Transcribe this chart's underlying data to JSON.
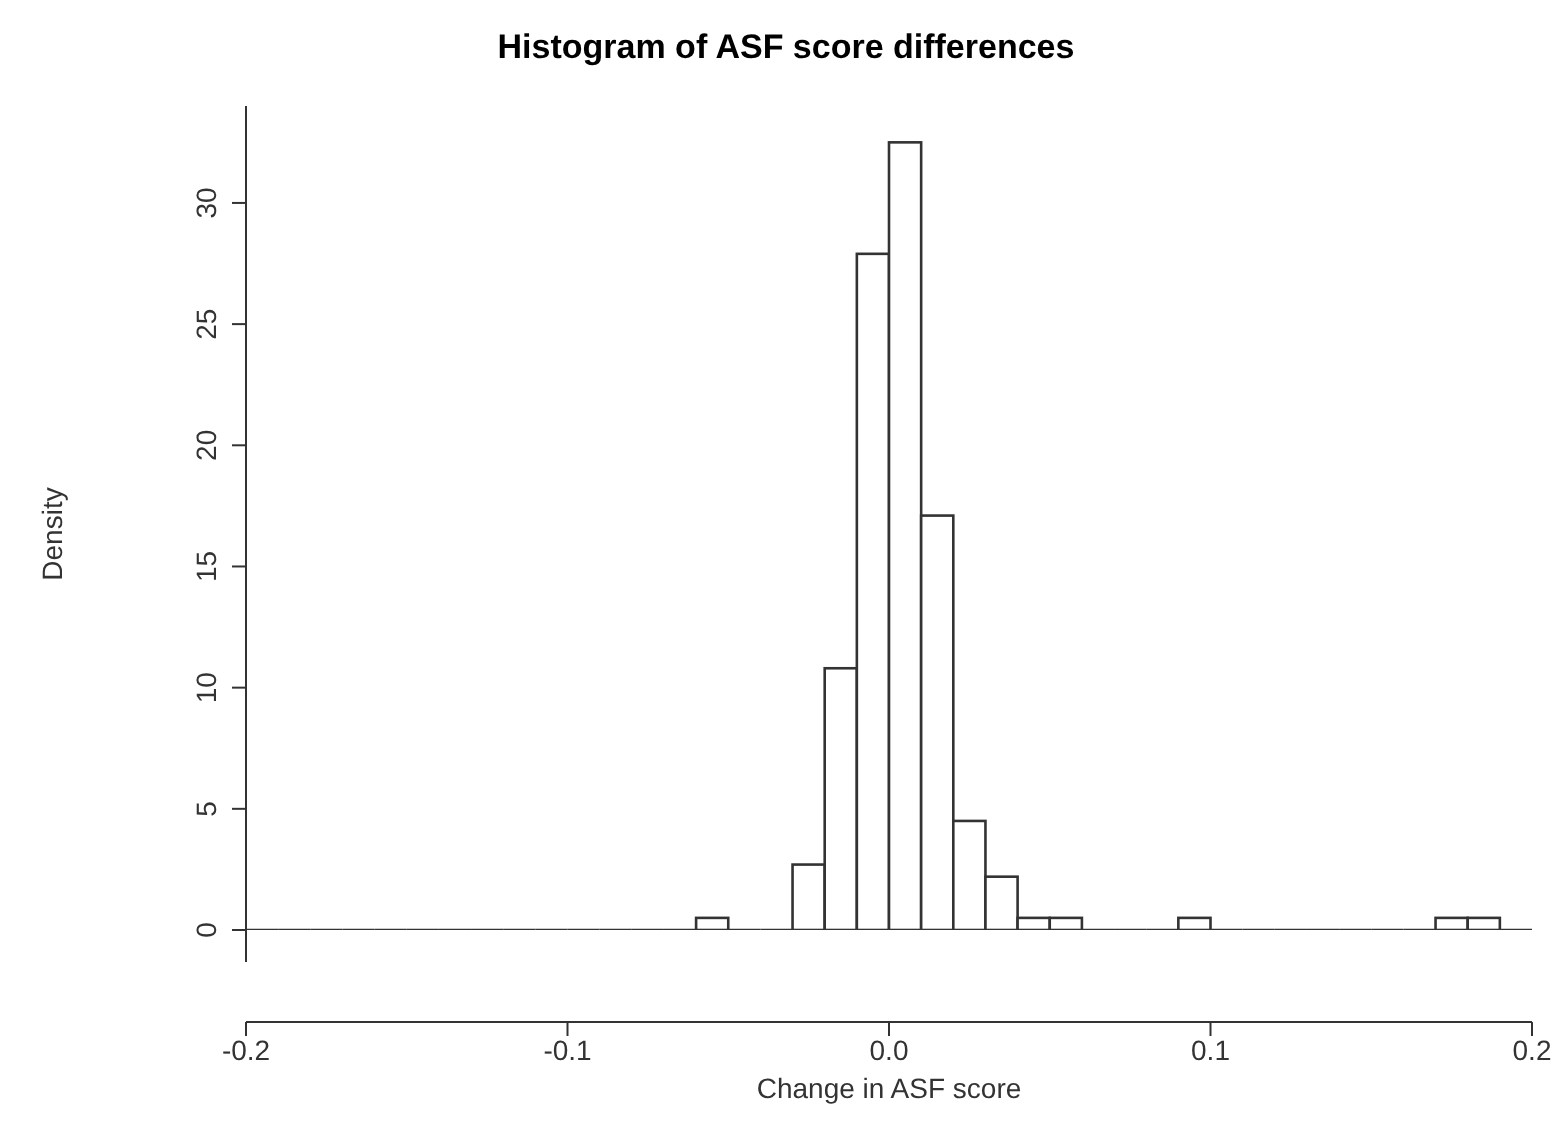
{
  "chart_data": {
    "type": "histogram",
    "title": "Histogram of ASF score differences",
    "xlabel": "Change in ASF score",
    "ylabel": "Density",
    "bins": [
      -0.2,
      -0.19,
      -0.18,
      -0.17,
      -0.16,
      -0.15,
      -0.14,
      -0.13,
      -0.12,
      -0.11,
      -0.1,
      -0.09,
      -0.08,
      -0.07,
      -0.06,
      -0.05,
      -0.04,
      -0.03,
      -0.02,
      -0.01,
      0,
      0.01,
      0.02,
      0.03,
      0.04,
      0.05,
      0.06,
      0.07,
      0.08,
      0.09,
      0.1,
      0.11,
      0.12,
      0.13,
      0.14,
      0.15,
      0.16,
      0.17,
      0.18,
      0.19,
      0.2
    ],
    "values": [
      0,
      0,
      0,
      0,
      0,
      0,
      0,
      0,
      0,
      0,
      0,
      0,
      0,
      0,
      0.5,
      0,
      0,
      2.7,
      10.8,
      27.9,
      32.5,
      17.1,
      4.5,
      2.2,
      0.5,
      0.5,
      0,
      0,
      0,
      0.5,
      0,
      0,
      0,
      0,
      0,
      0,
      0,
      0.5,
      0.5,
      0
    ],
    "color": "#ffffff",
    "xlim": [
      -0.2,
      0.2
    ],
    "xticks": [
      -0.2,
      -0.1,
      {
        "value": 0,
        "label": "0.0"
      },
      0.1,
      0.2
    ],
    "ylim": [
      0,
      34
    ],
    "yticks": [
      0,
      5,
      10,
      15,
      20,
      25,
      30
    ],
    "grid": false
  }
}
